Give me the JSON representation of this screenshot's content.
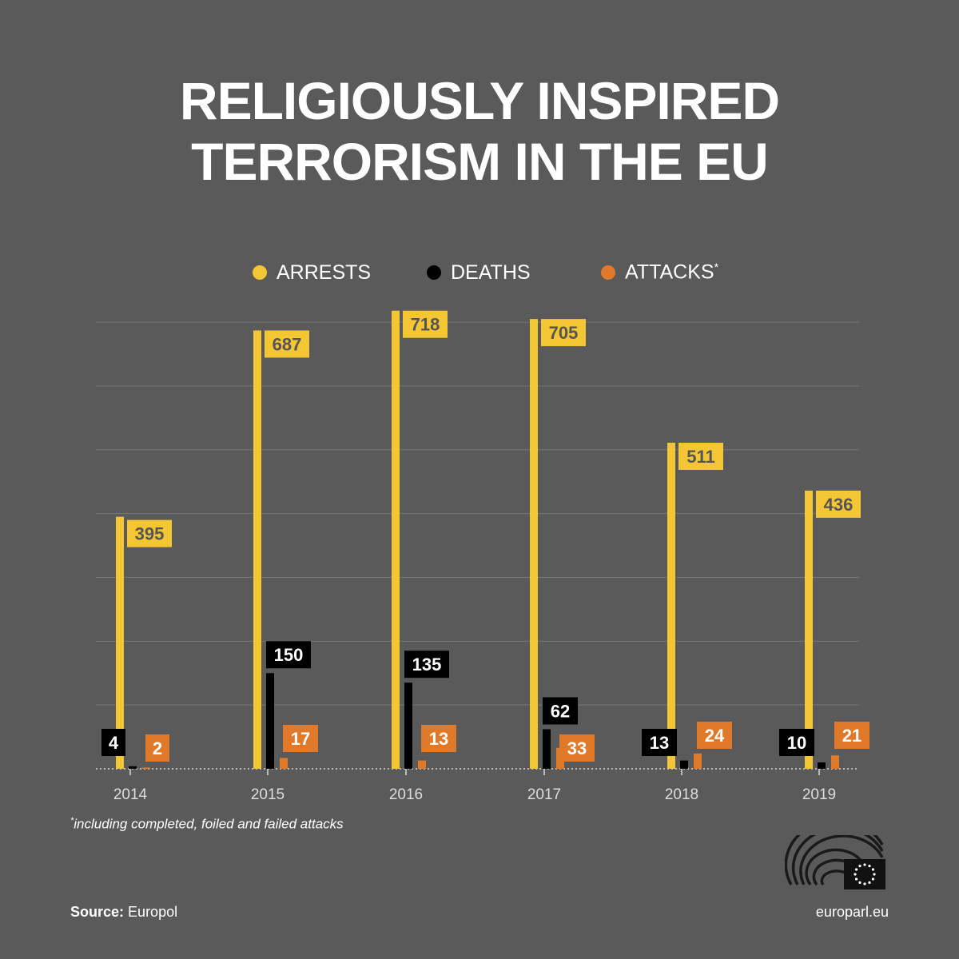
{
  "title": {
    "line1": "RELIGIOUSLY INSPIRED",
    "line2": "TERRORISM IN THE EU"
  },
  "legend": {
    "arrests": "ARRESTS",
    "deaths": "DEATHS",
    "attacks": "ATTACKS",
    "attacks_marker": "*"
  },
  "colors": {
    "background": "#5a5a5a",
    "arrests": "#f5c634",
    "deaths": "#000000",
    "attacks": "#e07a2a",
    "grid": "#777777"
  },
  "chart_data": {
    "type": "bar",
    "categories": [
      "2014",
      "2015",
      "2016",
      "2017",
      "2018",
      "2019"
    ],
    "series": [
      {
        "name": "ARRESTS",
        "values": [
          395,
          687,
          718,
          705,
          511,
          436
        ]
      },
      {
        "name": "DEATHS",
        "values": [
          4,
          150,
          135,
          62,
          13,
          10
        ]
      },
      {
        "name": "ATTACKS",
        "values": [
          2,
          17,
          13,
          33,
          24,
          21
        ]
      }
    ],
    "ylim": [
      0,
      700
    ],
    "grid": true,
    "legend_position": "top"
  },
  "footnote": {
    "marker": "*",
    "text": "including completed, foiled and failed attacks"
  },
  "source": {
    "label": "Source:",
    "value": "Europol"
  },
  "site": "europarl.eu",
  "logo": "european-parliament-logo"
}
